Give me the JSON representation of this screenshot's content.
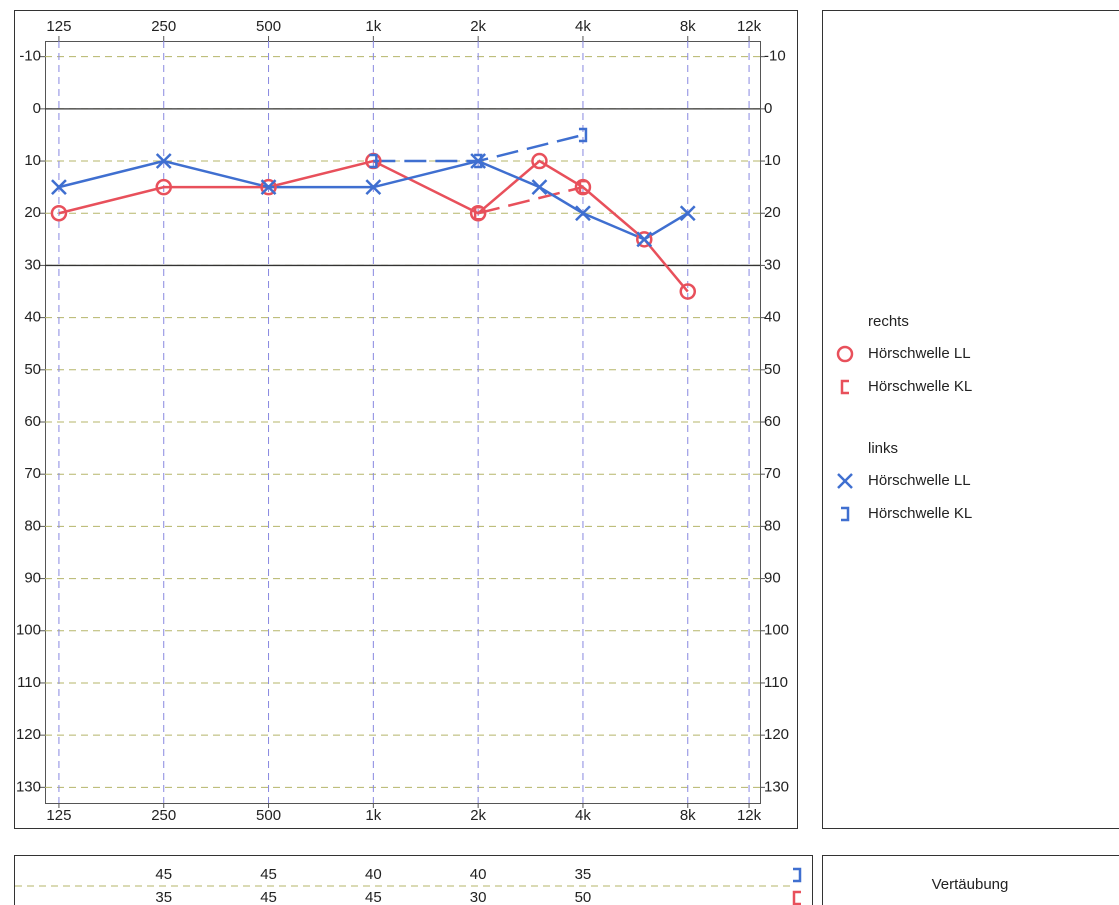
{
  "chart_data": {
    "type": "line",
    "xscale": "log",
    "yinverted": true,
    "xlim": [
      114,
      12900
    ],
    "ylim": [
      -13,
      133
    ],
    "xticks": [
      125,
      250,
      500,
      {
        "value": 1000,
        "label": "1k"
      },
      {
        "value": 2000,
        "label": "2k"
      },
      {
        "value": 4000,
        "label": "4k"
      },
      {
        "value": 8000,
        "label": "8k"
      },
      {
        "value": 12000,
        "label": "12k"
      }
    ],
    "yticks": [
      -10,
      0,
      10,
      20,
      30,
      40,
      50,
      60,
      70,
      80,
      90,
      100,
      110,
      120,
      130
    ],
    "ref_lines": [
      0,
      30
    ],
    "grid": true,
    "groups": [
      {
        "name": "rechts",
        "series": [
          {
            "name": "Hörschwelle LL",
            "color": "#e8505b",
            "marker": "circle",
            "dashed": false,
            "x": [
              125,
              250,
              500,
              1000,
              2000,
              3000,
              4000,
              6000,
              8000
            ],
            "values": [
              20,
              15,
              15,
              10,
              20,
              10,
              15,
              25,
              35
            ]
          },
          {
            "name": "Hörschwelle KL",
            "color": "#e8505b",
            "marker": "bracket-open",
            "dashed": true,
            "x": [
              2000,
              4000
            ],
            "values": [
              20,
              15
            ]
          }
        ]
      },
      {
        "name": "links",
        "series": [
          {
            "name": "Hörschwelle LL",
            "color": "#3f6fd0",
            "marker": "cross",
            "dashed": false,
            "x": [
              125,
              250,
              500,
              1000,
              2000,
              3000,
              4000,
              6000,
              8000
            ],
            "values": [
              15,
              10,
              15,
              15,
              10,
              15,
              20,
              25,
              20
            ]
          },
          {
            "name": "Hörschwelle KL",
            "color": "#3f6fd0",
            "marker": "bracket-close",
            "dashed": true,
            "x": [
              1000,
              2000,
              4000
            ],
            "values": [
              10,
              10,
              5
            ]
          }
        ]
      }
    ]
  },
  "masking_table": {
    "title": "Vertäubung",
    "x": [
      250,
      500,
      1000,
      2000,
      4000
    ],
    "rows": [
      {
        "color": "#3f6fd0",
        "marker": "bracket-close",
        "values": [
          45,
          45,
          40,
          40,
          35
        ]
      },
      {
        "color": "#e8505b",
        "marker": "bracket-open",
        "values": [
          35,
          45,
          45,
          30,
          50
        ]
      }
    ]
  }
}
